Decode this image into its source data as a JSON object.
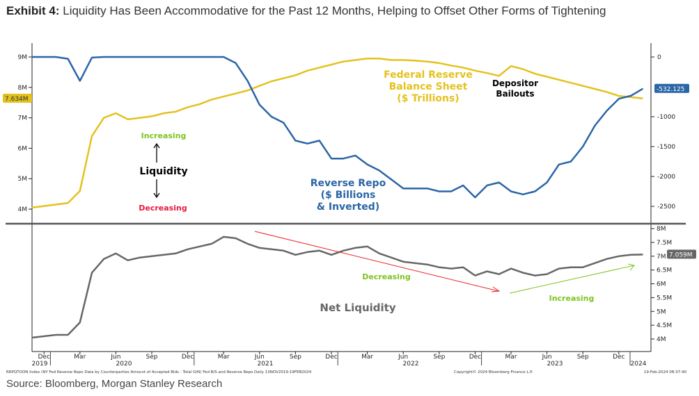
{
  "title": {
    "prefix": "Exhibit 4:",
    "text": "Liquidity Has Been Accommodative for the Past 12 Months, Helping to Offset Other Forms of Tightening"
  },
  "source": "Source: Bloomberg, Morgan Stanley Research",
  "footer": {
    "index_desc": "RRPQTOON Index (NY Fed Reverse Repo Data by Counterparties Amount of Accepted Bids - Total O/N) Fed B/S and Reverse Repo  Daily 13NOV2019-19FEB2024",
    "copyright": "Copyright© 2024 Bloomberg Finance L.P.",
    "timestamp": "19-Feb-2024 08:37:40"
  },
  "colors": {
    "fed": "#e3c21d",
    "repo": "#2a65a6",
    "net": "#666666",
    "increasing": "#7dc41f",
    "decreasing": "#e8193c",
    "red_arrow": "#e8242a"
  },
  "annotations": {
    "fed_label": [
      "Federal Reserve",
      "Balance Sheet",
      "($ Trillions)"
    ],
    "repo_label": [
      "Reverse Repo",
      "($ Billions",
      "& Inverted)"
    ],
    "depositor": [
      "Depositor",
      "Bailouts"
    ],
    "liquidity": "Liquidity",
    "increasing": "Increasing",
    "decreasing": "Decreasing",
    "net_liquidity": "Net Liquidity",
    "bottom_decreasing": "Decreasing",
    "bottom_increasing": "Increasing"
  },
  "chart_data": [
    {
      "type": "line",
      "panel": "top",
      "x_start": "2019-11",
      "frequency": "monthly",
      "left_axis": {
        "ticks": [
          "9M",
          "8M",
          "7M",
          "6M",
          "5M",
          "4M"
        ],
        "range": [
          3.5,
          9.3
        ],
        "last_value_label": "7.634M"
      },
      "right_axis": {
        "ticks": [
          "0",
          "-1000",
          "-1500",
          "-2000",
          "-2500"
        ],
        "range": [
          -2800,
          150
        ],
        "last_value_label": "-532.125"
      },
      "series": [
        {
          "name": "Federal Reserve Balance Sheet ($ Trillions)",
          "axis": "left",
          "values": [
            4.05,
            4.1,
            4.15,
            4.2,
            4.6,
            6.4,
            7.0,
            7.15,
            6.95,
            7.0,
            7.05,
            7.15,
            7.2,
            7.35,
            7.45,
            7.6,
            7.7,
            7.8,
            7.9,
            8.05,
            8.2,
            8.3,
            8.4,
            8.55,
            8.65,
            8.75,
            8.85,
            8.9,
            8.95,
            8.95,
            8.9,
            8.9,
            8.88,
            8.85,
            8.8,
            8.72,
            8.65,
            8.55,
            8.47,
            8.38,
            8.7,
            8.6,
            8.45,
            8.35,
            8.25,
            8.15,
            8.05,
            7.95,
            7.85,
            7.72,
            7.68,
            7.634
          ]
        },
        {
          "name": "Reverse Repo ($ Billions & Inverted)",
          "axis": "right",
          "values": [
            0,
            0,
            0,
            -30,
            -400,
            -10,
            0,
            0,
            0,
            0,
            0,
            0,
            0,
            0,
            0,
            0,
            0,
            -100,
            -400,
            -800,
            -1000,
            -1100,
            -1400,
            -1450,
            -1400,
            -1700,
            -1700,
            -1650,
            -1800,
            -1900,
            -2050,
            -2200,
            -2200,
            -2200,
            -2250,
            -2250,
            -2150,
            -2350,
            -2150,
            -2100,
            -2250,
            -2300,
            -2250,
            -2100,
            -1800,
            -1750,
            -1500,
            -1150,
            -900,
            -700,
            -650,
            -532.125
          ]
        }
      ]
    },
    {
      "type": "line",
      "panel": "bottom",
      "x_start": "2019-11",
      "frequency": "monthly",
      "right_axis": {
        "ticks": [
          "8M",
          "7.5M",
          "7M",
          "6.5M",
          "6M",
          "5.5M",
          "5M",
          "4.5M",
          "4M"
        ],
        "range": [
          3.7,
          8.0
        ],
        "last_value_label": "7.059M"
      },
      "x_ticks": {
        "months": [
          "Dec",
          "Mar",
          "Jun",
          "Sep",
          "Dec",
          "Mar",
          "Jun",
          "Sep",
          "Dec",
          "Mar",
          "Jun",
          "Sep",
          "Dec",
          "Mar",
          "Jun",
          "Sep",
          "Dec"
        ],
        "years": [
          "2019",
          "2020",
          "2021",
          "2022",
          "2023",
          "2024"
        ]
      },
      "series": [
        {
          "name": "Net Liquidity",
          "axis": "right",
          "values": [
            4.05,
            4.1,
            4.15,
            4.15,
            4.6,
            6.4,
            6.9,
            7.1,
            6.85,
            6.95,
            7.0,
            7.05,
            7.1,
            7.25,
            7.35,
            7.45,
            7.7,
            7.65,
            7.45,
            7.3,
            7.25,
            7.2,
            7.05,
            7.15,
            7.2,
            7.05,
            7.2,
            7.3,
            7.35,
            7.1,
            6.95,
            6.8,
            6.75,
            6.7,
            6.6,
            6.55,
            6.6,
            6.3,
            6.45,
            6.35,
            6.55,
            6.4,
            6.3,
            6.35,
            6.55,
            6.6,
            6.6,
            6.75,
            6.9,
            7.0,
            7.05,
            7.059
          ]
        }
      ]
    }
  ]
}
